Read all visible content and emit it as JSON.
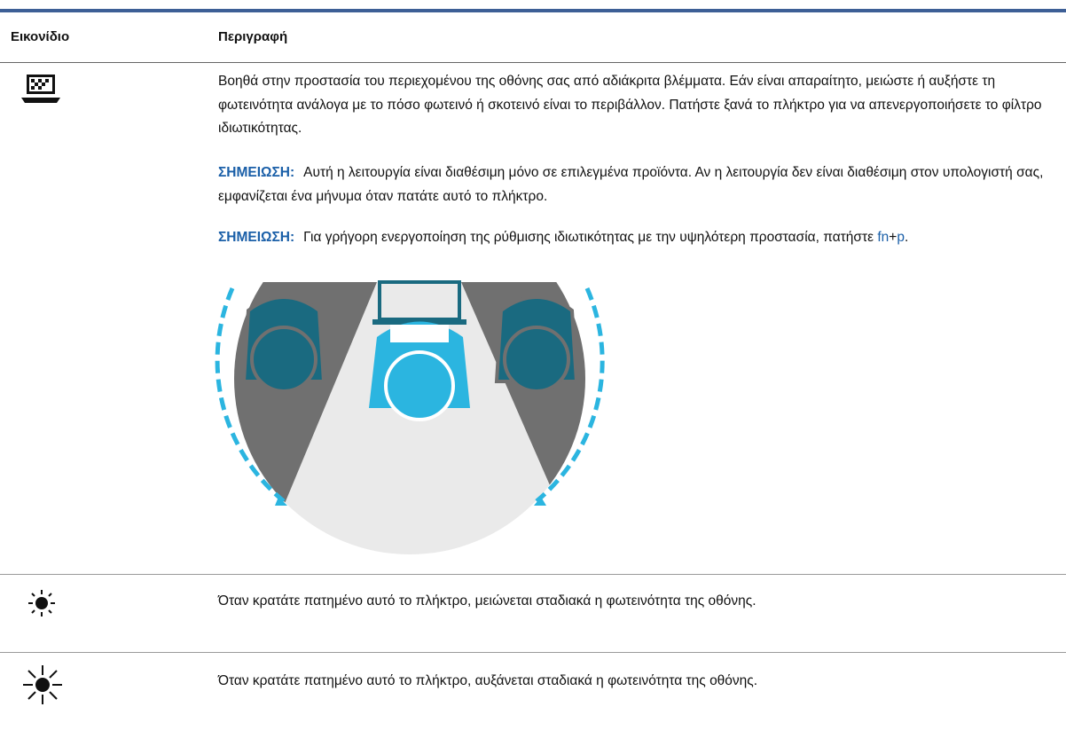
{
  "table": {
    "header": [
      "Εικονίδιο",
      "Περιγραφή"
    ],
    "rows": [
      {
        "description": "Βοηθά στην προστασία του περιεχομένου της οθόνης σας από αδιάκριτα βλέμματα. Εάν είναι απαραίτητο, μειώστε ή αυξήστε τη φωτεινότητα ανάλογα με το πόσο φωτεινό ή σκοτεινό είναι το περιβάλλον. Πατήστε ξανά το πλήκτρο για να απενεργοποιήσετε το φίλτρο ιδιωτικότητας.",
        "notes": [
          {
            "label": "ΣΗΜΕΙΩΣΗ:",
            "text": "Αυτή η λειτουργία είναι διαθέσιμη μόνο σε επιλεγμένα προϊόντα. Αν η λειτουργία δεν είναι διαθέσιμη στον υπολογιστή σας, εμφανίζεται ένα μήνυμα όταν πατάτε αυτό το πλήκτρο."
          },
          {
            "label": "ΣΗΜΕΙΩΣΗ:",
            "text": "Για γρήγορη ενεργοποίηση της ρύθμισης ιδιωτικότητας με την υψηλότερη προστασία, πατήστε",
            "keys": [
              "fn",
              "+",
              "p",
              "."
            ]
          }
        ]
      },
      {
        "description": "Όταν κρατάτε πατημένο αυτό το πλήκτρο, μειώνεται σταδιακά η φωτεινότητα της οθόνης."
      },
      {
        "description": "Όταν κρατάτε πατημένο αυτό το πλήκτρο, αυξάνεται σταδιακά η φωτεινότητα της οθόνης."
      }
    ]
  }
}
